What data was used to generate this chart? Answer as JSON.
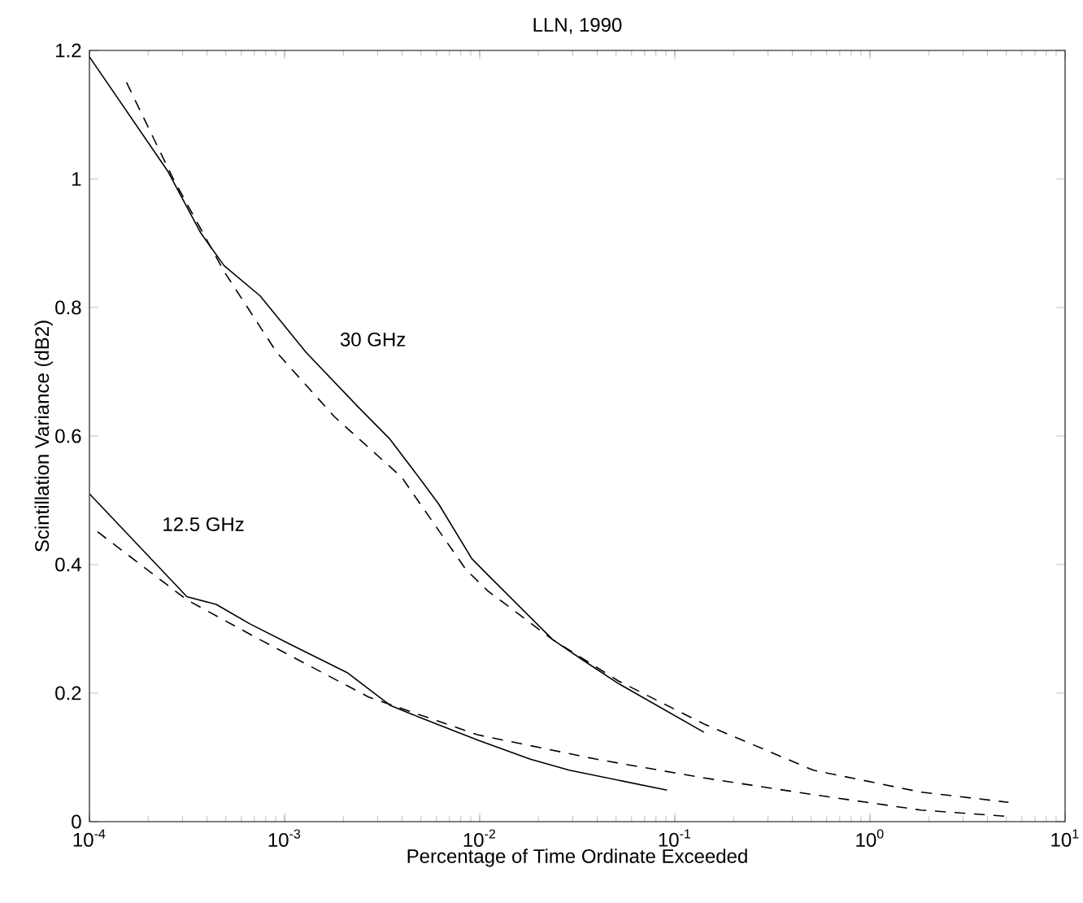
{
  "chart_data": {
    "type": "line",
    "title": "LLN, 1990",
    "xlabel": "Percentage of Time Ordinate Exceeded",
    "ylabel": "Scintillation Variance (dB2)",
    "log": "x",
    "grid": false,
    "legend": false,
    "marker": "none",
    "xlim": [
      0.0001,
      10
    ],
    "ylim": [
      0,
      1.2
    ],
    "xticks": [
      {
        "value": 0.0001,
        "label": "10$^{-4}$"
      },
      {
        "value": 0.001,
        "label": "10$^{-3}$"
      },
      {
        "value": 0.01,
        "label": "10$^{-2}$"
      },
      {
        "value": 0.1,
        "label": "10$^{-1}$"
      },
      {
        "value": 1,
        "label": "10$^{0}$"
      },
      {
        "value": 10,
        "label": "10$^{1}$"
      }
    ],
    "yticks": [
      0,
      0.2,
      0.4,
      0.6,
      0.8,
      1,
      1.2
    ],
    "series": [
      {
        "name": "30 GHz",
        "color": "#000000",
        "line_style": "solid",
        "x": [
          0.0001,
          0.000251,
          0.000372,
          0.00049,
          0.00075,
          0.00129,
          0.00237,
          0.00347,
          0.00513,
          0.00617,
          0.00912,
          0.011,
          0.0237,
          0.0347,
          0.0513,
          0.141
        ],
        "values": [
          1.19,
          1.013,
          0.916,
          0.865,
          0.818,
          0.73,
          0.646,
          0.595,
          0.527,
          0.494,
          0.409,
          0.384,
          0.283,
          0.249,
          0.215,
          0.139
        ]
      },
      {
        "color": "#000000",
        "line_style": "dashed",
        "x": [
          0.000155,
          0.000269,
          0.00049,
          0.000912,
          0.0018,
          0.00398,
          0.00851,
          0.011,
          0.0237,
          0.0513,
          0.141,
          0.513,
          1.82,
          5.13
        ],
        "values": [
          1.15,
          1.0,
          0.856,
          0.73,
          0.63,
          0.536,
          0.392,
          0.359,
          0.283,
          0.219,
          0.152,
          0.08,
          0.046,
          0.03
        ]
      },
      {
        "name": "12.5 GHz",
        "color": "#000000",
        "line_style": "solid",
        "x": [
          0.0001,
          0.000316,
          0.000447,
          0.000661,
          0.0011,
          0.00209,
          0.00347,
          0.00513,
          0.00977,
          0.0182,
          0.0288,
          0.0912
        ],
        "values": [
          0.51,
          0.35,
          0.338,
          0.308,
          0.274,
          0.232,
          0.181,
          0.16,
          0.127,
          0.097,
          0.08,
          0.049
        ]
      },
      {
        "color": "#000000",
        "line_style": "dashed",
        "x": [
          0.00011,
          0.000316,
          0.00075,
          0.00269,
          0.00977,
          0.0398,
          0.141,
          0.513,
          1.82,
          5.13
        ],
        "values": [
          0.451,
          0.345,
          0.283,
          0.194,
          0.135,
          0.097,
          0.068,
          0.042,
          0.018,
          0.008
        ]
      }
    ]
  }
}
